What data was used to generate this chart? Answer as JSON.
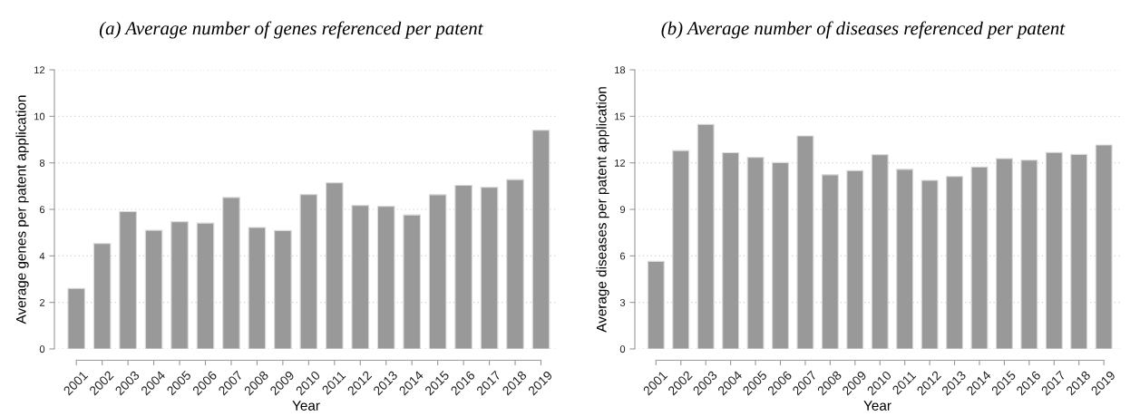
{
  "chart_data": [
    {
      "type": "bar",
      "title": "(a) Average number of genes referenced per patent",
      "xlabel": "Year",
      "ylabel": "Average genes per patent application",
      "categories": [
        "2001",
        "2002",
        "2003",
        "2004",
        "2005",
        "2006",
        "2007",
        "2008",
        "2009",
        "2010",
        "2011",
        "2012",
        "2013",
        "2014",
        "2015",
        "2016",
        "2017",
        "2018",
        "2019"
      ],
      "values": [
        2.6,
        4.53,
        5.9,
        5.1,
        5.47,
        5.41,
        6.51,
        5.22,
        5.09,
        6.64,
        7.14,
        6.17,
        6.13,
        5.76,
        6.63,
        7.03,
        6.95,
        7.28,
        9.4
      ],
      "color": "#999999",
      "ylim": [
        0,
        12
      ],
      "yticks": [
        0,
        2,
        4,
        6,
        8,
        10,
        12
      ],
      "grid": "y"
    },
    {
      "type": "bar",
      "title": "(b) Average number of diseases referenced per patent",
      "xlabel": "Year",
      "ylabel": "Average diseases per patent application",
      "categories": [
        "2001",
        "2002",
        "2003",
        "2004",
        "2005",
        "2006",
        "2007",
        "2008",
        "2009",
        "2010",
        "2011",
        "2012",
        "2013",
        "2014",
        "2015",
        "2016",
        "2017",
        "2018",
        "2019"
      ],
      "values": [
        5.65,
        12.79,
        14.48,
        12.65,
        12.35,
        12.02,
        13.73,
        11.23,
        11.5,
        12.52,
        11.58,
        10.87,
        11.12,
        11.73,
        12.27,
        12.17,
        12.67,
        12.54,
        13.15
      ],
      "color": "#999999",
      "ylim": [
        0,
        18
      ],
      "yticks": [
        0,
        3,
        6,
        9,
        12,
        15,
        18
      ],
      "grid": "y"
    }
  ]
}
